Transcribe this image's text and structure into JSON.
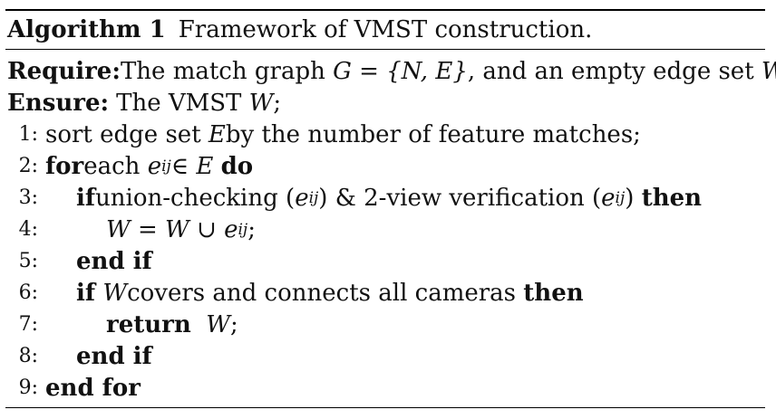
{
  "algorithm": {
    "label": "Algorithm 1",
    "title": "Framework of VMST construction.",
    "require_kw": "Require:",
    "require_text_pre": "The match graph ",
    "require_math": "G = {N, E}",
    "require_text_mid": ", and an empty edge set ",
    "require_W": "W",
    "require_end": ";",
    "ensure_kw": "Ensure:",
    "ensure_text": "The VMST ",
    "ensure_W": "W",
    "ensure_end": ";",
    "lines": [
      {
        "no": "1:",
        "text_pre": "sort edge set ",
        "math": "E",
        "text_post": " by the number of feature matches;"
      },
      {
        "no": "2:",
        "kw_for": "for",
        "text_each": " each ",
        "e": "e",
        "sub": "ij",
        "in_E": " ∈ E ",
        "kw_do": "do"
      },
      {
        "no": "3:",
        "kw_if": "if",
        "text_a": " union-checking (",
        "e": "e",
        "sub": "ij",
        "text_b": ") & 2-view verification (",
        "e2": "e",
        "sub2": "ij",
        "text_c": ") ",
        "kw_then": "then"
      },
      {
        "no": "4:",
        "math_a": "W = W ∪ ",
        "e": "e",
        "sub": "ij",
        "end": ";"
      },
      {
        "no": "5:",
        "kw": "end if"
      },
      {
        "no": "6:",
        "kw_if": "if",
        "sp": " ",
        "W": "W",
        "text": " covers and connects all cameras ",
        "kw_then": "then"
      },
      {
        "no": "7:",
        "kw_return": "return",
        "W": "W",
        "end": ";"
      },
      {
        "no": "8:",
        "kw": "end if"
      },
      {
        "no": "9:",
        "kw": "end for"
      }
    ]
  }
}
